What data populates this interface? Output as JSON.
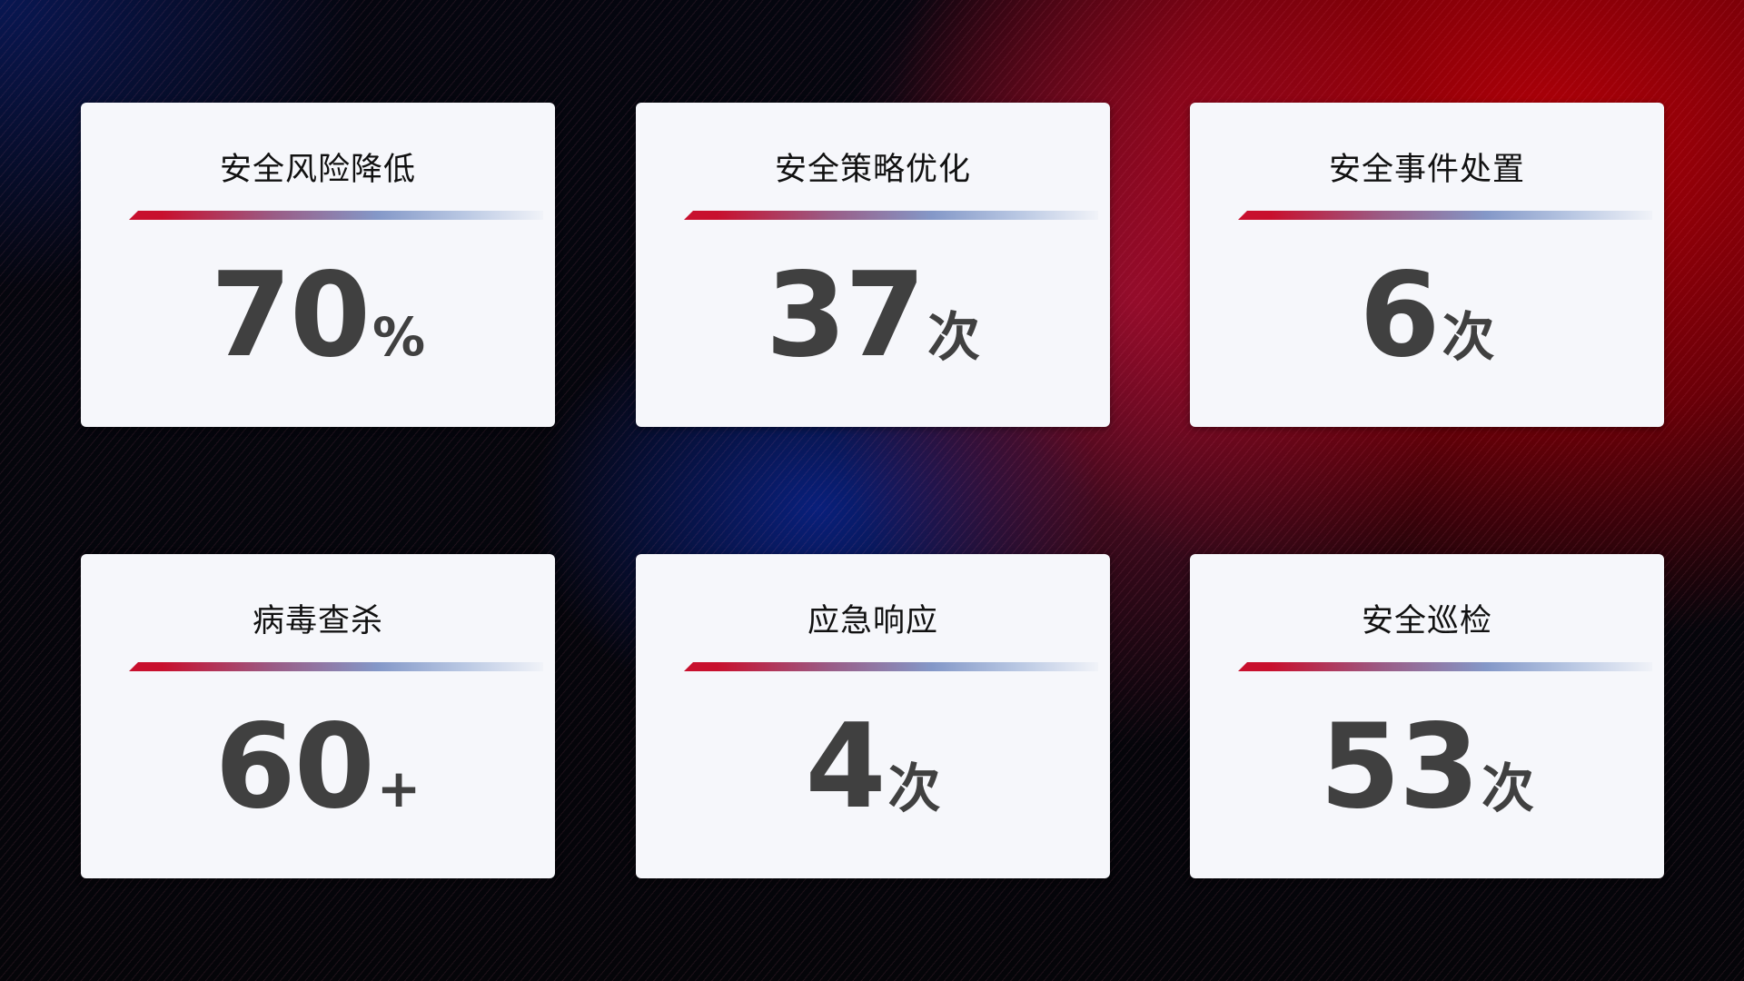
{
  "cards": [
    {
      "title": "安全风险降低",
      "value": "70",
      "unit": "%"
    },
    {
      "title": "安全策略优化",
      "value": "37",
      "unit": "次"
    },
    {
      "title": "安全事件处置",
      "value": "6",
      "unit": "次"
    },
    {
      "title": "病毒查杀",
      "value": "60",
      "unit": "+"
    },
    {
      "title": "应急响应",
      "value": "4",
      "unit": "次"
    },
    {
      "title": "安全巡检",
      "value": "53",
      "unit": "次"
    }
  ],
  "colors": {
    "accent_red": "#c8102e",
    "accent_blue": "#8498c8",
    "card_bg": "#f6f7fb",
    "value_text": "#404040"
  }
}
